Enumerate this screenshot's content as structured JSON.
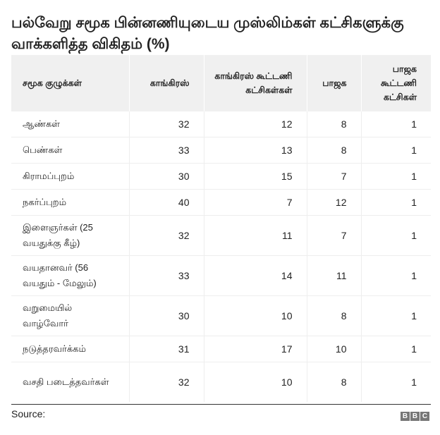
{
  "title": "பல்வேறு சமூக பின்னணியுடைய முஸ்லிம்கள் கட்சிகளுக்கு வாக்களித்த விகிதம் (%)",
  "chart_data": {
    "type": "table",
    "columns": [
      "சமூக குழுக்கள்",
      "காங்கிரஸ்",
      "காங்கிரஸ் கூட்டணி கட்சிகள்கள்",
      "பாஜக",
      "பாஜக கூட்டணி கட்சிகள்"
    ],
    "rows": [
      [
        "ஆண்கள்",
        "32",
        "12",
        "8",
        "1"
      ],
      [
        "பெண்கள்",
        "33",
        "13",
        "8",
        "1"
      ],
      [
        "கிராமப்புறம்",
        "30",
        "15",
        "7",
        "1"
      ],
      [
        "நகர்ப்புறம்",
        "40",
        "7",
        "12",
        "1"
      ],
      [
        "இளைஞர்கள் (25 வயதுக்கு கீழ்)",
        "32",
        "11",
        "7",
        "1"
      ],
      [
        "வயதானவர் (56 வயதும் - மேலும்)",
        "33",
        "14",
        "11",
        "1"
      ],
      [
        "வறுமையில் வாழ்வோர்",
        "30",
        "10",
        "8",
        "1"
      ],
      [
        "நடுத்தரவர்க்கம்",
        "31",
        "17",
        "10",
        "1"
      ],
      [
        "வசதி படைத்தவர்கள்",
        "32",
        "10",
        "8",
        "1"
      ]
    ]
  },
  "footer": {
    "source": "Source:",
    "logo": "BBC"
  }
}
